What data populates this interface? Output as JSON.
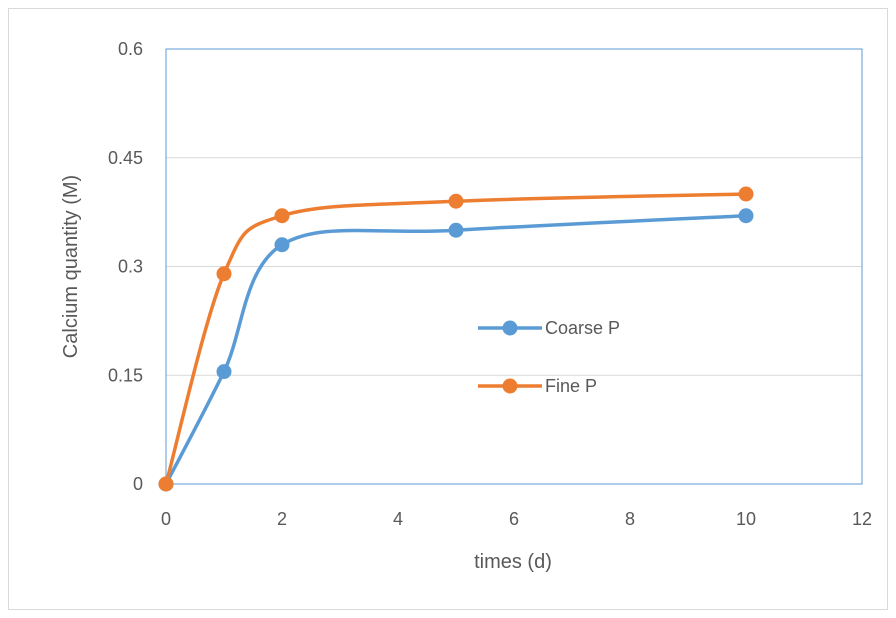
{
  "chart_data": {
    "type": "line",
    "title": "",
    "xlabel": "times (d)",
    "ylabel": "Calcium quantity (M)",
    "xlim": [
      0,
      12
    ],
    "ylim": [
      0,
      0.6
    ],
    "xticks": [
      "0",
      "2",
      "4",
      "6",
      "8",
      "10",
      "12"
    ],
    "yticks": [
      "0",
      "0.15",
      "0.3",
      "0.45",
      "0.6"
    ],
    "smooth": true,
    "grid": "horizontal",
    "legend_position": "center-right",
    "series": [
      {
        "name": "Coarse P",
        "color": "#5b9bd5",
        "x": [
          0,
          1,
          2,
          5,
          10
        ],
        "y": [
          0,
          0.155,
          0.33,
          0.35,
          0.37
        ]
      },
      {
        "name": "Fine P",
        "color": "#ed7d31",
        "x": [
          0,
          1,
          2,
          5,
          10
        ],
        "y": [
          0,
          0.29,
          0.37,
          0.39,
          0.4
        ]
      }
    ],
    "plot_border_color": "#5b9bd5",
    "gridline_color": "#d9d9d9"
  }
}
